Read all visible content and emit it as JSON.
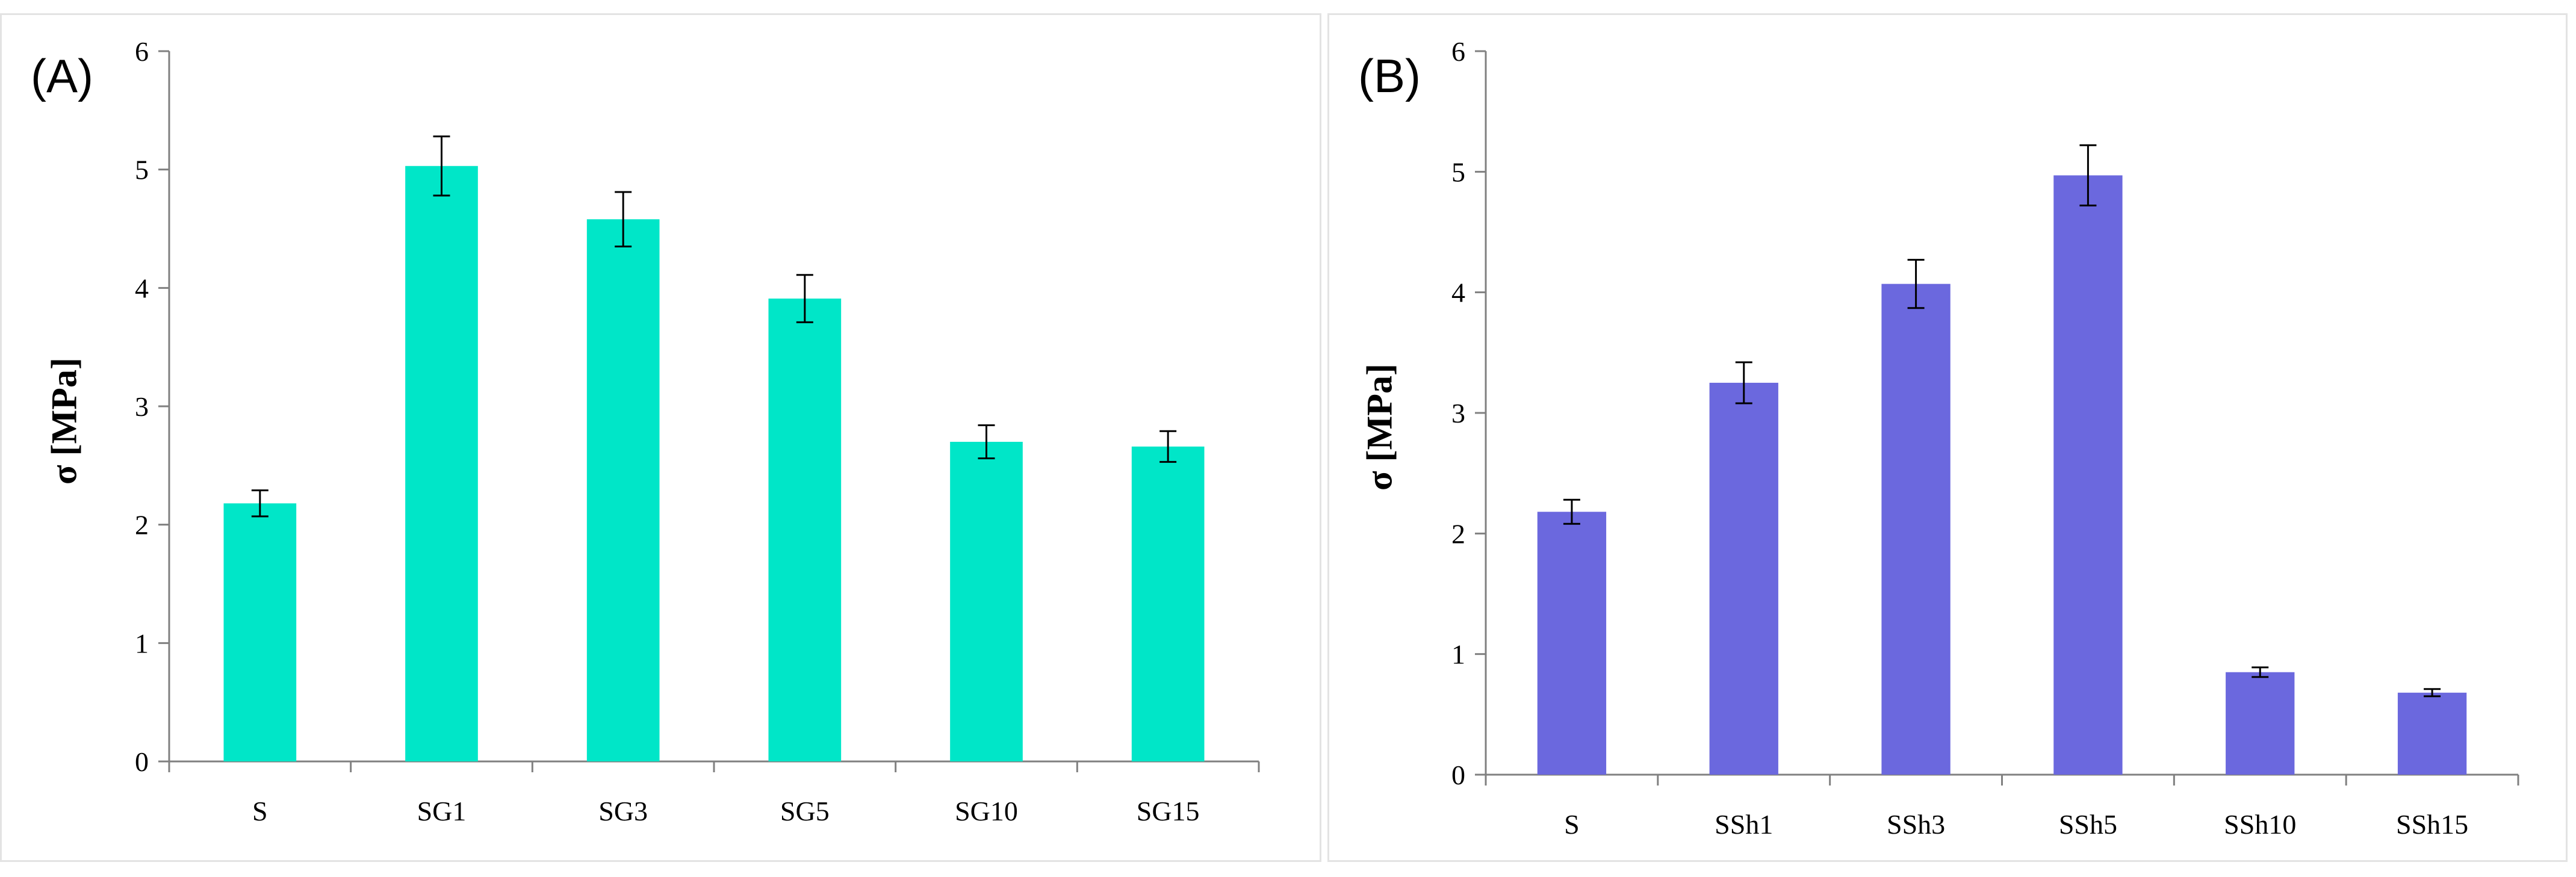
{
  "chart_data": [
    {
      "type": "bar",
      "panel_label": "(A)",
      "title": "",
      "xlabel": "",
      "ylabel": "σ [MPa]",
      "ylim": [
        0,
        6
      ],
      "yticks": [
        "0",
        "1",
        "2",
        "3",
        "4",
        "5",
        "6"
      ],
      "grid": false,
      "legend": "none",
      "color": "#00E6C8",
      "categories": [
        "S",
        "SG1",
        "SG3",
        "SG5",
        "SG10",
        "SG15"
      ],
      "values": [
        2.18,
        5.03,
        4.58,
        3.91,
        2.7,
        2.66
      ],
      "errors": [
        0.11,
        0.25,
        0.23,
        0.2,
        0.14,
        0.13
      ]
    },
    {
      "type": "bar",
      "panel_label": "(B)",
      "title": "",
      "xlabel": "",
      "ylabel": "σ [MPa]",
      "ylim": [
        0,
        6
      ],
      "yticks": [
        "0",
        "1",
        "2",
        "3",
        "4",
        "5",
        "6"
      ],
      "grid": false,
      "legend": "none",
      "color": "#6B68DE",
      "categories": [
        "S",
        "SSh1",
        "SSh3",
        "SSh5",
        "SSh10",
        "SSh15"
      ],
      "values": [
        2.18,
        3.25,
        4.07,
        4.97,
        0.85,
        0.68
      ],
      "errors": [
        0.1,
        0.17,
        0.2,
        0.25,
        0.04,
        0.03
      ]
    }
  ]
}
